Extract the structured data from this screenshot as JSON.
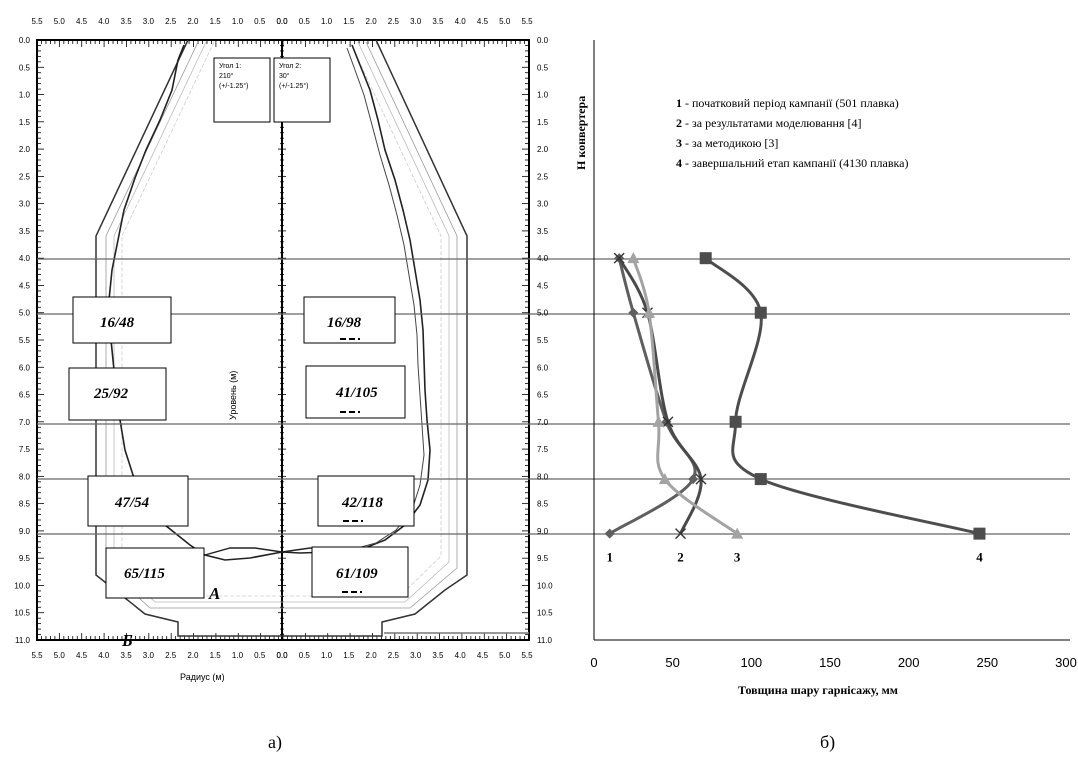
{
  "panel_a": {
    "caption": "а)",
    "x_axis_label": "Радиус (м)",
    "y_axis_label": "Уровень (м)",
    "top_ticks_left": [
      "5.5",
      "5.0",
      "4.5",
      "4.0",
      "3.5",
      "3.0",
      "2.5",
      "2.0",
      "1.5",
      "1.0",
      "0.5",
      "0.0"
    ],
    "top_ticks_right": [
      "0.0",
      "0.5",
      "1.0",
      "1.5",
      "2.0",
      "2.5",
      "3.0",
      "3.5",
      "4.0",
      "4.5",
      "5.0",
      "5.5"
    ],
    "y_ticks": [
      "0.0",
      "0.5",
      "1.0",
      "1.5",
      "2.0",
      "2.5",
      "3.0",
      "3.5",
      "4.0",
      "4.5",
      "5.0",
      "5.5",
      "6.0",
      "6.5",
      "7.0",
      "7.5",
      "8.0",
      "8.5",
      "9.0",
      "9.5",
      "10.0",
      "10.5",
      "11.0"
    ],
    "angle1": [
      "Угол 1:",
      "210°",
      "(+/-1.25°)"
    ],
    "angle2": [
      "Угол 2:",
      "30°",
      "(+/-1.25°)"
    ],
    "boxes_left": [
      "16/48",
      "25/92",
      "47/54",
      "65/115"
    ],
    "boxes_right": [
      "16/98",
      "41/105",
      "42/118",
      "61/109"
    ],
    "label_A": "А",
    "label_B": "Б"
  },
  "panel_b": {
    "caption": "б)",
    "legend": [
      {
        "num": "1",
        "text": " - початковий період кампанії (501 плавка)"
      },
      {
        "num": "2",
        "text": " - за результатами моделювання [4]"
      },
      {
        "num": "3",
        "text": " - за методикою [3]"
      },
      {
        "num": "4",
        "text": " - завершальний етап кампанії (4130 плавка)"
      }
    ]
  },
  "chart_data": {
    "type": "line",
    "xlabel": "Товщина шару гарнісажу, мм",
    "ylabel": "Н конвертера",
    "xlim": [
      0,
      300
    ],
    "ylim": [
      0,
      11
    ],
    "x_ticks": [
      0,
      50,
      100,
      150,
      200,
      250,
      300
    ],
    "y_ticks": [
      "0.0",
      "0.5",
      "1.0",
      "1.5",
      "2.0",
      "2.5",
      "3.0",
      "3.5",
      "4.0",
      "4.5",
      "5.0",
      "5.5",
      "6.0",
      "6.5",
      "7.0",
      "7.5",
      "8.0",
      "8.5",
      "9.0",
      "9.5",
      "10.0",
      "10.5",
      "11.0"
    ],
    "gridlines_y": [
      4,
      5,
      7,
      8,
      9
    ],
    "series": [
      {
        "name": "1",
        "color": "#5f5f5f",
        "marker": "diamond",
        "label": "1",
        "points": [
          [
            16,
            4
          ],
          [
            25,
            5
          ],
          [
            46,
            7
          ],
          [
            63,
            8.05
          ],
          [
            10,
            9.05
          ]
        ]
      },
      {
        "name": "2",
        "color": "#4a4a4a",
        "marker": "x",
        "label": "2",
        "points": [
          [
            16,
            4
          ],
          [
            34,
            5
          ],
          [
            47,
            7
          ],
          [
            68,
            8.05
          ],
          [
            55,
            9.05
          ]
        ]
      },
      {
        "name": "3",
        "color": "#a3a3a3",
        "marker": "triangle",
        "label": "3",
        "points": [
          [
            25,
            4
          ],
          [
            35,
            5
          ],
          [
            41,
            7
          ],
          [
            45,
            8.05
          ],
          [
            91,
            9.05
          ]
        ]
      },
      {
        "name": "4",
        "color": "#4d4d4d",
        "marker": "square",
        "label": "4",
        "points": [
          [
            71,
            4
          ],
          [
            106,
            5
          ],
          [
            90,
            7
          ],
          [
            106,
            8.05
          ],
          [
            245,
            9.05
          ]
        ]
      }
    ]
  }
}
